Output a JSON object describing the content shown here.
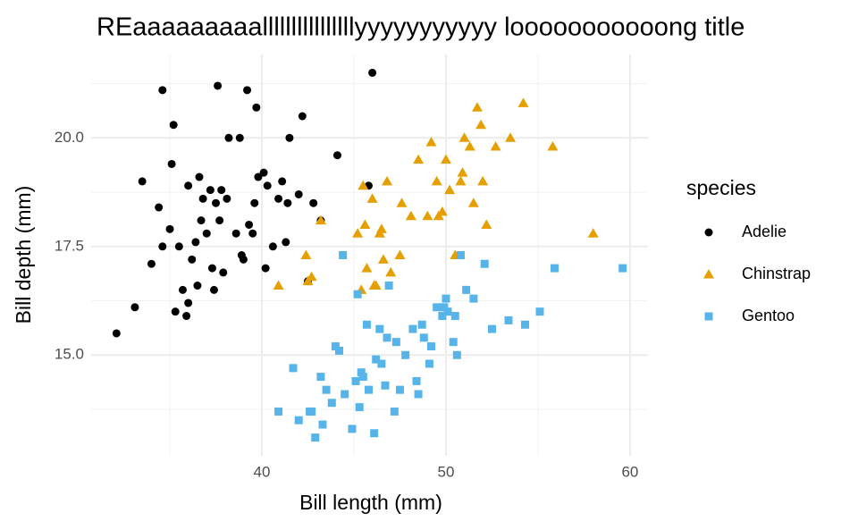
{
  "chart_data": {
    "type": "scatter",
    "title": "REaaaaaaaaallllllllllllllllyyyyyyyyyyy looooooooooong title",
    "x_label": "Bill length (mm)",
    "y_label": "Bill depth (mm)",
    "legend_title": "species",
    "legend_position": "right",
    "grid": true,
    "xlim": [
      30.725,
      60.975
    ],
    "ylim": [
      12.68,
      21.92
    ],
    "xticks": [
      40,
      50,
      60
    ],
    "yticks": [
      {
        "value": 15,
        "label": "15.0"
      },
      {
        "value": 17.5,
        "label": "17.5"
      },
      {
        "value": 20,
        "label": "20.0"
      }
    ],
    "minor_xticks": [
      35,
      45,
      55
    ],
    "minor_yticks": [
      13.75,
      16.25,
      18.75,
      21.25
    ],
    "series": [
      {
        "name": "Adelie",
        "color": "#000000",
        "shape": "circle",
        "x": [
          32.1,
          33.1,
          33.5,
          34.0,
          34.4,
          34.6,
          35.0,
          35.1,
          35.3,
          35.5,
          35.7,
          35.9,
          36.0,
          36.2,
          36.4,
          36.5,
          36.6,
          36.7,
          36.8,
          37.0,
          37.2,
          37.3,
          37.5,
          37.6,
          37.7,
          37.8,
          37.9,
          38.1,
          38.2,
          38.6,
          38.8,
          39.0,
          39.2,
          39.5,
          39.6,
          39.7,
          40.1,
          40.2,
          40.6,
          40.9,
          41.1,
          41.4,
          41.5,
          42.0,
          42.2,
          42.5,
          42.8,
          43.2,
          44.1,
          45.8,
          46.0,
          36.0,
          38.9,
          39.8,
          41.3,
          40.3,
          35.2,
          37.4,
          34.6,
          39.3
        ],
        "values": [
          15.5,
          16.1,
          19.0,
          17.1,
          18.4,
          21.1,
          17.9,
          19.4,
          16.0,
          17.5,
          16.5,
          15.9,
          18.9,
          17.2,
          17.6,
          16.6,
          19.1,
          18.1,
          18.6,
          17.8,
          18.8,
          17.0,
          18.5,
          21.2,
          18.1,
          18.8,
          16.9,
          18.6,
          20.0,
          17.8,
          20.0,
          17.2,
          21.1,
          17.8,
          18.5,
          20.7,
          19.2,
          17.0,
          17.5,
          18.6,
          19.0,
          18.5,
          20.0,
          18.7,
          20.5,
          16.7,
          18.5,
          18.1,
          19.6,
          18.9,
          21.5,
          16.2,
          17.3,
          19.1,
          17.6,
          18.9,
          20.3,
          16.5,
          17.5,
          18.0
        ]
      },
      {
        "name": "Chinstrap",
        "color": "#E69F00",
        "shape": "triangle",
        "x": [
          40.9,
          42.4,
          42.5,
          43.2,
          42.7,
          45.2,
          45.4,
          45.5,
          45.6,
          45.7,
          46.0,
          46.1,
          46.4,
          46.5,
          46.6,
          46.8,
          47.0,
          47.5,
          48.1,
          48.5,
          49.0,
          49.2,
          49.5,
          49.6,
          50.0,
          50.2,
          50.5,
          50.8,
          51.0,
          51.3,
          51.5,
          51.7,
          52.0,
          52.2,
          52.7,
          53.5,
          54.2,
          55.8,
          58.0,
          49.8,
          50.9,
          51.9,
          46.2,
          47.6
        ],
        "values": [
          16.6,
          17.3,
          16.7,
          18.1,
          16.8,
          17.8,
          16.5,
          18.9,
          18.0,
          17.0,
          18.6,
          16.6,
          17.8,
          17.9,
          17.2,
          19.0,
          16.9,
          17.3,
          18.2,
          19.5,
          18.2,
          19.9,
          19.0,
          18.2,
          19.5,
          18.8,
          17.3,
          19.0,
          20.0,
          19.8,
          18.5,
          20.7,
          19.0,
          18.0,
          19.8,
          20.0,
          20.8,
          19.8,
          17.8,
          18.3,
          19.2,
          20.3,
          16.6,
          18.5
        ]
      },
      {
        "name": "Gentoo",
        "color": "#56B4E9",
        "shape": "square",
        "x": [
          40.9,
          41.7,
          42.0,
          42.6,
          42.7,
          42.9,
          43.2,
          43.3,
          43.5,
          43.8,
          44.0,
          44.4,
          44.5,
          44.9,
          45.1,
          45.2,
          45.3,
          45.5,
          45.7,
          45.8,
          46.1,
          46.2,
          46.4,
          46.5,
          46.8,
          47.2,
          47.5,
          47.8,
          48.2,
          48.4,
          48.7,
          49.1,
          49.5,
          49.8,
          50.0,
          50.4,
          50.5,
          50.8,
          51.1,
          51.5,
          52.1,
          52.5,
          53.4,
          54.3,
          55.1,
          55.9,
          59.6,
          45.4,
          46.9,
          48.5,
          49.2,
          50.1,
          47.3,
          44.2,
          46.7,
          49.9,
          48.8,
          50.6
        ],
        "values": [
          13.7,
          14.7,
          13.5,
          13.7,
          13.7,
          13.1,
          14.5,
          13.4,
          14.2,
          13.9,
          15.2,
          17.3,
          14.1,
          13.3,
          14.4,
          16.4,
          13.8,
          14.5,
          15.7,
          14.2,
          13.2,
          14.9,
          15.6,
          14.8,
          15.4,
          13.7,
          14.2,
          15.0,
          15.6,
          14.4,
          15.7,
          14.8,
          16.1,
          15.9,
          16.3,
          15.3,
          15.9,
          17.3,
          16.5,
          16.3,
          17.1,
          15.6,
          15.8,
          15.7,
          16.0,
          17.0,
          17.0,
          14.6,
          16.6,
          14.1,
          15.2,
          16.0,
          15.3,
          15.1,
          14.3,
          16.1,
          15.4,
          15.0
        ]
      }
    ]
  }
}
